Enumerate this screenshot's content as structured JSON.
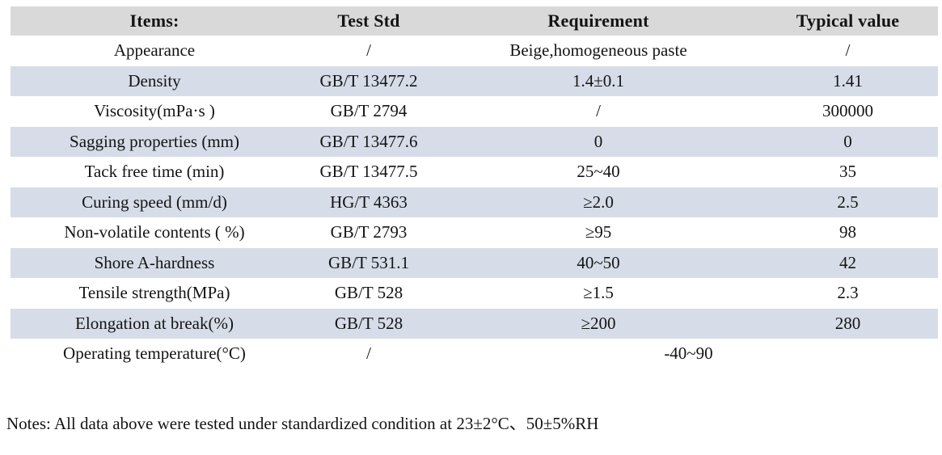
{
  "table": {
    "columns": [
      "Items:",
      "Test Std",
      "Requirement",
      "Typical value"
    ],
    "rows": [
      {
        "item": "Appearance",
        "std": "/",
        "req": "Beige,homogeneous paste",
        "typ": "/"
      },
      {
        "item": "Density",
        "std": "GB/T 13477.2",
        "req": "1.4±0.1",
        "typ": "1.41"
      },
      {
        "item": "Viscosity(mPa·s )",
        "std": "GB/T 2794",
        "req": "/",
        "typ": "300000"
      },
      {
        "item": "Sagging properties (mm)",
        "std": "GB/T 13477.6",
        "req": "0",
        "typ": "0"
      },
      {
        "item": "Tack free time (min)",
        "std": "GB/T 13477.5",
        "req": "25~40",
        "typ": "35"
      },
      {
        "item": "Curing speed (mm/d)",
        "std": "HG/T 4363",
        "req": "≥2.0",
        "typ": "2.5"
      },
      {
        "item": "Non-volatile contents ( %)",
        "std": "GB/T 2793",
        "req": "≥95",
        "typ": "98"
      },
      {
        "item": "Shore A-hardness",
        "std": "GB/T 531.1",
        "req": "40~50",
        "typ": "42"
      },
      {
        "item": "Tensile strength(MPa)",
        "std": "GB/T 528",
        "req": "≥1.5",
        "typ": "2.3"
      },
      {
        "item": "Elongation at break(%)",
        "std": "GB/T 528",
        "req": "≥200",
        "typ": "280"
      },
      {
        "item": "Operating temperature(°C)",
        "std": "/",
        "req_span": "-40~90"
      }
    ],
    "colors": {
      "header_bg": "#d9d9d9",
      "stripe_bg": "#d6dde8",
      "text": "#141414"
    }
  },
  "note": "Notes: All data above were tested under standardized condition at 23±2°C、50±5%RH"
}
